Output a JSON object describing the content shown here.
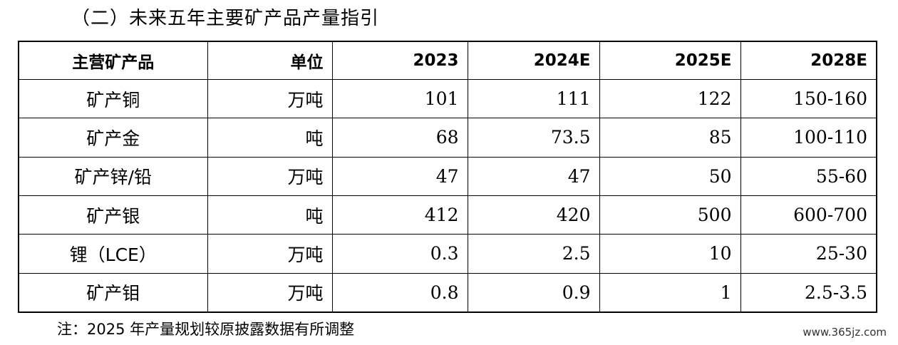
{
  "title": "（二）未来五年主要矿产品产量指引",
  "table": {
    "headers": [
      "主营矿产品",
      "单位",
      "2023",
      "2024E",
      "2025E",
      "2028E"
    ],
    "rows": [
      {
        "product": "矿产铜",
        "unit": "万吨",
        "y2023": "101",
        "y2024e": "111",
        "y2025e": "122",
        "y2028e": "150-160"
      },
      {
        "product": "矿产金",
        "unit": "吨",
        "y2023": "68",
        "y2024e": "73.5",
        "y2025e": "85",
        "y2028e": "100-110"
      },
      {
        "product": "矿产锌/铅",
        "unit": "万吨",
        "y2023": "47",
        "y2024e": "47",
        "y2025e": "50",
        "y2028e": "55-60"
      },
      {
        "product": "矿产银",
        "unit": "吨",
        "y2023": "412",
        "y2024e": "420",
        "y2025e": "500",
        "y2028e": "600-700"
      },
      {
        "product": "锂（LCE）",
        "unit": "万吨",
        "y2023": "0.3",
        "y2024e": "2.5",
        "y2025e": "10",
        "y2028e": "25-30"
      },
      {
        "product": "矿产钼",
        "unit": "万吨",
        "y2023": "0.8",
        "y2024e": "0.9",
        "y2025e": "1",
        "y2028e": "2.5-3.5"
      }
    ]
  },
  "note": "注：2025 年产量规划较原披露数据有所调整",
  "watermark": "www.365jz.com"
}
